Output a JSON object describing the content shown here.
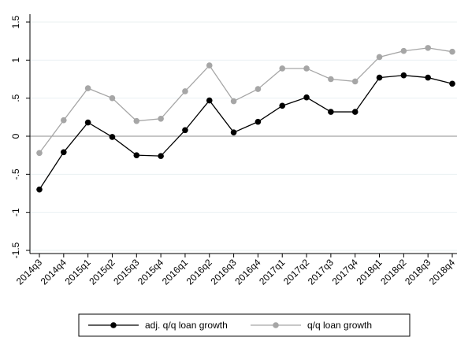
{
  "chart_data": {
    "type": "line",
    "categories": [
      "2014q3",
      "2014q4",
      "2015q1",
      "2015q2",
      "2015q3",
      "2015q4",
      "2016q1",
      "2016q2",
      "2016q3",
      "2016q4",
      "2017q1",
      "2017q2",
      "2017q3",
      "2017q4",
      "2018q1",
      "2018q2",
      "2018q3",
      "2018q4"
    ],
    "series": [
      {
        "name": "adj. q/q loan growth",
        "color": "#000000",
        "values": [
          -0.7,
          -0.21,
          0.18,
          -0.01,
          -0.25,
          -0.26,
          0.08,
          0.47,
          0.05,
          0.19,
          0.4,
          0.51,
          0.32,
          0.32,
          0.77,
          0.8,
          0.77,
          0.69
        ]
      },
      {
        "name": "q/q loan growth",
        "color": "#a6a6a6",
        "values": [
          -0.22,
          0.21,
          0.63,
          0.5,
          0.2,
          0.23,
          0.59,
          0.93,
          0.46,
          0.62,
          0.89,
          0.89,
          0.75,
          0.72,
          1.04,
          1.12,
          1.16,
          1.11
        ]
      }
    ],
    "ylim": [
      -1.5,
      1.5
    ],
    "yticks": [
      1.5,
      1,
      {
        "value": 0.5,
        "label": ".5"
      },
      0,
      {
        "value": -0.5,
        "label": "-.5"
      },
      -1,
      -1.5
    ],
    "yline": 0,
    "grid": true,
    "legend": "bottom"
  }
}
